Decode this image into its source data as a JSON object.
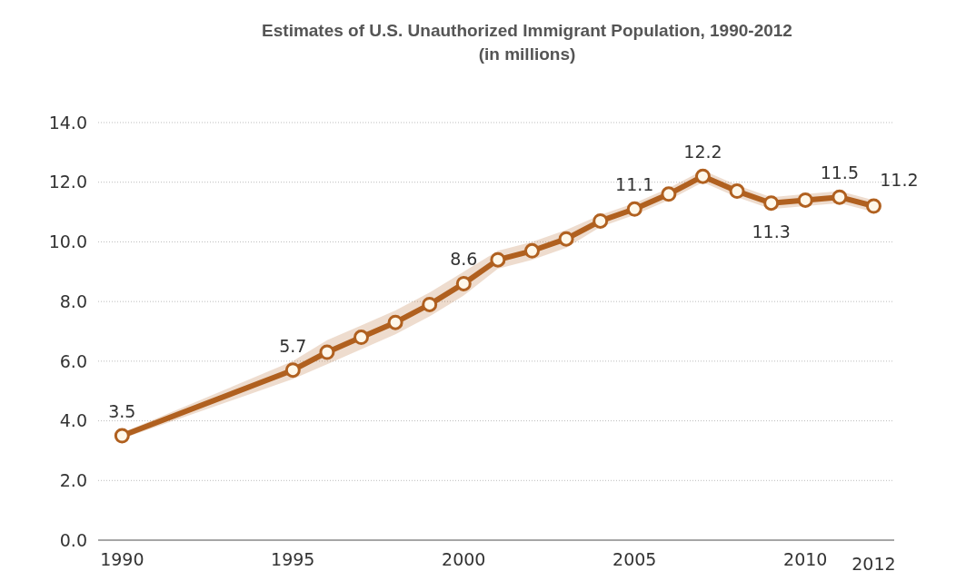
{
  "chart_data": {
    "type": "line",
    "title": "Estimates of U.S. Unauthorized Immigrant Population, 1990-2012",
    "subtitle": "(in millions)",
    "x": [
      1990,
      1995,
      1996,
      1997,
      1998,
      1999,
      2000,
      2001,
      2002,
      2003,
      2004,
      2005,
      2006,
      2007,
      2008,
      2009,
      2010,
      2011,
      2012
    ],
    "series": [
      {
        "color": "#b0601f",
        "values": [
          3.5,
          5.7,
          6.3,
          6.8,
          7.3,
          7.9,
          8.6,
          9.4,
          9.7,
          10.1,
          10.7,
          11.1,
          11.6,
          12.2,
          11.7,
          11.3,
          11.4,
          11.5,
          11.2
        ],
        "lower": [
          3.4,
          5.4,
          5.9,
          6.4,
          6.9,
          7.5,
          8.2,
          9.1,
          9.4,
          9.8,
          10.5,
          10.9,
          11.4,
          12.0,
          11.5,
          11.1,
          11.2,
          11.3,
          11.0
        ],
        "upper": [
          3.6,
          6.0,
          6.7,
          7.2,
          7.7,
          8.3,
          9.0,
          9.7,
          10.0,
          10.4,
          10.9,
          11.3,
          11.8,
          12.4,
          11.9,
          11.5,
          11.6,
          11.7,
          11.4
        ],
        "value_labels": [
          "3.5",
          "5.7",
          null,
          null,
          null,
          null,
          "8.6",
          null,
          null,
          null,
          null,
          "11.1",
          null,
          "12.2",
          null,
          "11.3",
          null,
          "11.5",
          "11.2"
        ]
      }
    ],
    "xlim": [
      1989.3,
      2012.6
    ],
    "xticks": [
      1990,
      1995,
      2000,
      2005,
      2010,
      2012
    ],
    "ylim": [
      0,
      14
    ],
    "yticks": [
      {
        "value": 0,
        "label": "0.0"
      },
      {
        "value": 2,
        "label": "2.0"
      },
      {
        "value": 4,
        "label": "4.0"
      },
      {
        "value": 6,
        "label": "6.0"
      },
      {
        "value": 8,
        "label": "8.0"
      },
      {
        "value": 10,
        "label": "10.0"
      },
      {
        "value": 12,
        "label": "12.0"
      },
      {
        "value": 14,
        "label": "14.0"
      }
    ],
    "grid": "y",
    "marker": "circle",
    "line_style": "solid"
  }
}
